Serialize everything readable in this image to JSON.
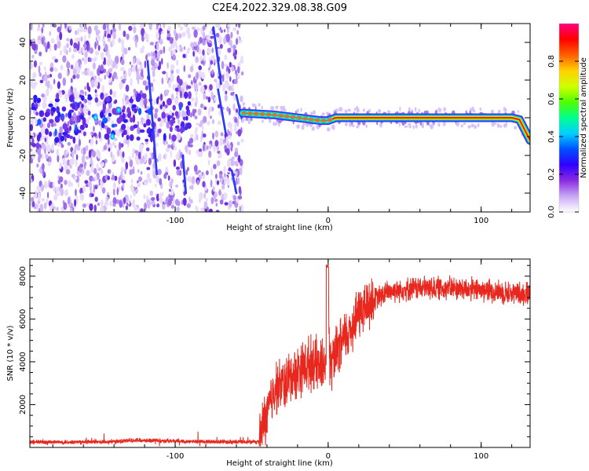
{
  "title": "C2E4.2022.329.08.38.G09",
  "chart_data": [
    {
      "type": "heatmap",
      "xlabel": "Height of straight line (km)",
      "ylabel": "Frequency (Hz)",
      "xlim": [
        -195,
        132
      ],
      "ylim": [
        -50,
        50
      ],
      "xticks": [
        -100,
        0,
        100
      ],
      "yticks": [
        -40,
        -20,
        0,
        20,
        40
      ],
      "colorbar": {
        "label": "Normalized spectral amplitude",
        "range": [
          0,
          1
        ],
        "ticks": [
          "0.0",
          "0.2",
          "0.4",
          "0.6",
          "0.8"
        ],
        "colors": [
          "#ffffff",
          "#c9a8f5",
          "#8a2be2",
          "#3000ff",
          "#0050ff",
          "#00d0ff",
          "#00ff90",
          "#50ff00",
          "#d0ff00",
          "#ffd000",
          "#ff6000",
          "#ff0000",
          "#ff0080"
        ]
      },
      "noise_region_x": [
        -195,
        -56
      ],
      "carrier_freq_hz": 0,
      "trend": [
        {
          "x": -56,
          "f": 2.5
        },
        {
          "x": -45,
          "f": 2.0
        },
        {
          "x": -35,
          "f": 1.5
        },
        {
          "x": -25,
          "f": 0.5
        },
        {
          "x": -15,
          "f": -0.5
        },
        {
          "x": -5,
          "f": -1.5
        },
        {
          "x": 0,
          "f": -1.5
        },
        {
          "x": 5,
          "f": 0
        },
        {
          "x": 120,
          "f": 0
        },
        {
          "x": 125,
          "f": -1
        },
        {
          "x": 132,
          "f": -12
        }
      ],
      "streaks": [
        {
          "x1": -75,
          "f1": 48,
          "x2": -70,
          "f2": 18
        },
        {
          "x1": -72,
          "f1": 15,
          "x2": -67,
          "f2": -8
        },
        {
          "x1": -63,
          "f1": -28,
          "x2": -60,
          "f2": -40
        },
        {
          "x1": -118,
          "f1": 30,
          "x2": -112,
          "f2": -30
        },
        {
          "x1": -95,
          "f1": -20,
          "x2": -93,
          "f2": -40
        },
        {
          "x1": -60,
          "f1": 12,
          "x2": -56,
          "f2": -2
        }
      ]
    },
    {
      "type": "line",
      "xlabel": "Height of straight line (km)",
      "ylabel": "SNR (10 * v/v)",
      "xlim": [
        -195,
        132
      ],
      "ylim": [
        0,
        8800
      ],
      "xticks": [
        -100,
        0,
        100
      ],
      "yticks": [
        2000,
        4000,
        6000,
        8000
      ],
      "color": "#e8281e",
      "x": [
        -195,
        -150,
        -132,
        -125,
        -100,
        -80,
        -60,
        -45,
        -42,
        -40,
        -35,
        -30,
        -25,
        -20,
        -10,
        -5,
        -1,
        0,
        1,
        5,
        10,
        15,
        20,
        30,
        40,
        50,
        60,
        80,
        100,
        110,
        120,
        132
      ],
      "y": [
        250,
        250,
        300,
        350,
        300,
        270,
        260,
        260,
        1200,
        1500,
        2800,
        2900,
        3200,
        3600,
        4000,
        3700,
        4200,
        8600,
        3700,
        4300,
        5000,
        5600,
        6300,
        6900,
        7300,
        7400,
        7450,
        7450,
        7350,
        7300,
        7200,
        7200
      ]
    }
  ]
}
